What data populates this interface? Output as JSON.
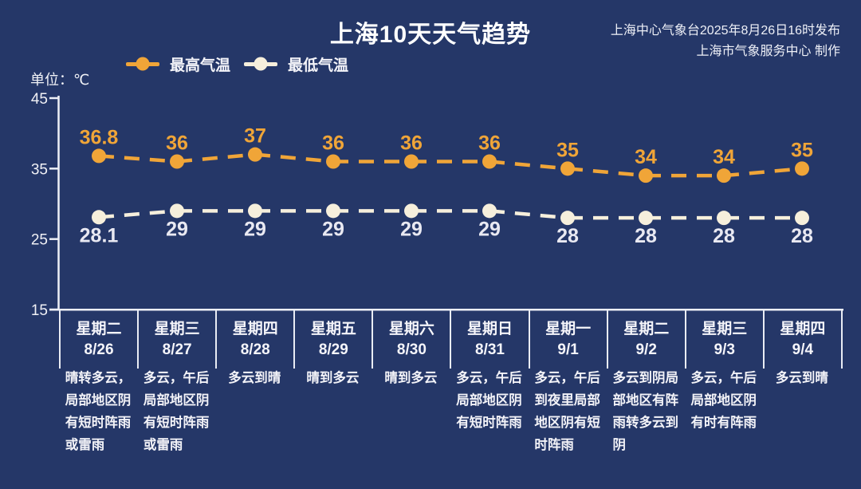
{
  "header": {
    "title": "上海10天天气趋势",
    "source_line1": "上海中心气象台2025年8月26日16时发布",
    "source_line2": "上海市气象服务中心 制作"
  },
  "unit_label": "单位：℃",
  "colors": {
    "background": "#253768",
    "text": "#FFFFFF",
    "axis": "#EDEFF6",
    "divider": "#E9ECF4",
    "high": "#F0A538",
    "high_label": "#F0A538",
    "low": "#F6EFDC",
    "low_label": "#E9E9F2"
  },
  "chart_data": {
    "type": "line",
    "title": "上海10天天气趋势",
    "line_style": "dashed",
    "marker": "circle",
    "grid": false,
    "legend_position": "top-left",
    "ylim": [
      15,
      45
    ],
    "yticks": [
      45,
      35,
      25,
      15
    ],
    "categories": [
      {
        "weekday": "星期二",
        "date": "8/26",
        "weather": [
          "晴转多云，",
          "局部地区阴",
          "有短时阵雨",
          "或雷雨"
        ]
      },
      {
        "weekday": "星期三",
        "date": "8/27",
        "weather": [
          "多云，午后",
          "局部地区阴",
          "有短时阵雨",
          "或雷雨"
        ]
      },
      {
        "weekday": "星期四",
        "date": "8/28",
        "weather": [
          "多云到晴"
        ]
      },
      {
        "weekday": "星期五",
        "date": "8/29",
        "weather": [
          "晴到多云"
        ]
      },
      {
        "weekday": "星期六",
        "date": "8/30",
        "weather": [
          "晴到多云"
        ]
      },
      {
        "weekday": "星期日",
        "date": "8/31",
        "weather": [
          "多云，午后",
          "局部地区阴",
          "有短时阵雨"
        ]
      },
      {
        "weekday": "星期一",
        "date": "9/1",
        "weather": [
          "多云，午后",
          "到夜里局部",
          "地区阴有短",
          "时阵雨"
        ]
      },
      {
        "weekday": "星期二",
        "date": "9/2",
        "weather": [
          "多云到阴局",
          "部地区有阵",
          "雨转多云到",
          "阴"
        ]
      },
      {
        "weekday": "星期三",
        "date": "9/3",
        "weather": [
          "多云，午后",
          "局部地区阴",
          "有时有阵雨"
        ]
      },
      {
        "weekday": "星期四",
        "date": "9/4",
        "weather": [
          "多云到晴"
        ]
      }
    ],
    "series": [
      {
        "name": "最高气温",
        "color": "#F0A538",
        "label_color": "#F0A538",
        "values": [
          36.8,
          36,
          37,
          36,
          36,
          36,
          35,
          34,
          34,
          35
        ]
      },
      {
        "name": "最低气温",
        "color": "#F6EFDC",
        "label_color": "#E9E9F2",
        "values": [
          28.1,
          29,
          29,
          29,
          29,
          29,
          28,
          28,
          28,
          28
        ]
      }
    ]
  }
}
